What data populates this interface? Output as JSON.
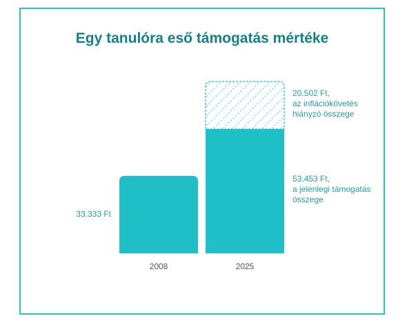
{
  "chart_data": {
    "type": "stacked-bar",
    "title": "Egy tanulóra eső támogatás mértéke",
    "categories": [
      "2008",
      "2025"
    ],
    "series": [
      {
        "name": "a jelenlegi támogatás összege",
        "color": "#20bfc8",
        "fill": "solid",
        "values": [
          33333,
          53453
        ],
        "value_labels": [
          "33.333 Ft",
          "53.453 Ft,"
        ]
      },
      {
        "name": "az inflációkövetés hiányzó összege",
        "color": "#20bfc8",
        "fill": "hatched",
        "values": [
          null,
          20502
        ],
        "value_labels": [
          null,
          "20.502 Ft,"
        ]
      }
    ]
  }
}
